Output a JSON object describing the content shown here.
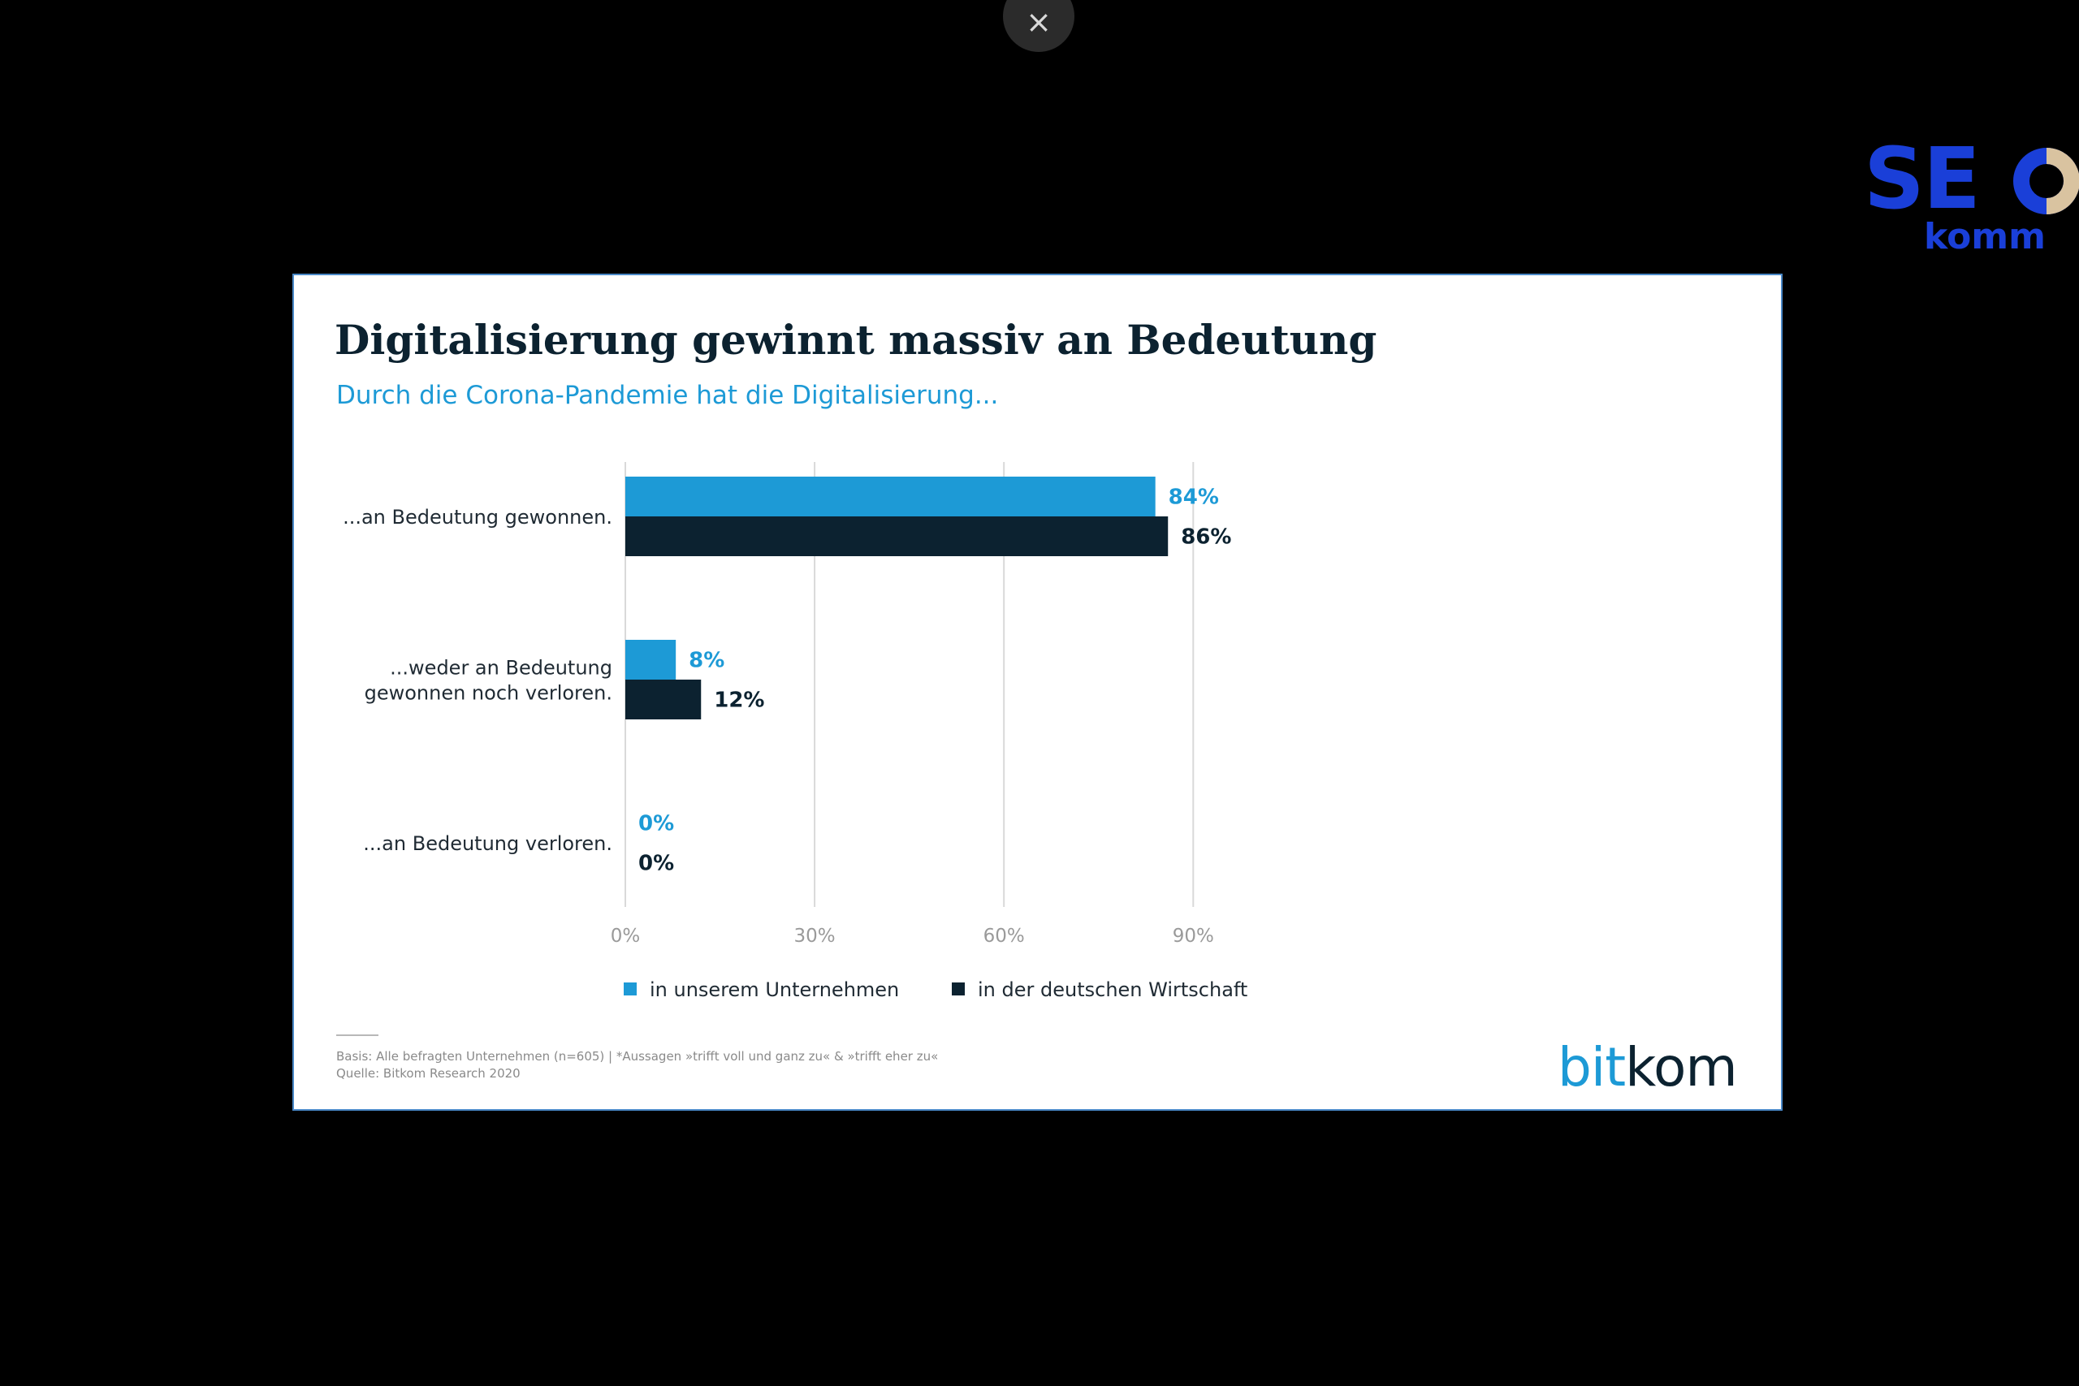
{
  "viewer": {
    "close_symbol": "×",
    "close_icon": "close-icon"
  },
  "overlay_logo": {
    "text": "SEOkomm",
    "colors": {
      "primary": "#1a3fd8",
      "accent": "#d9c3a0"
    }
  },
  "colors": {
    "company": "#1d9ad6",
    "economy": "#0c2230",
    "grid": "#d9d9d9",
    "axis_text": "#9a9a9a",
    "category_text": "#1f2a33"
  },
  "chart_data": {
    "type": "bar",
    "orientation": "horizontal",
    "title": "Digitalisierung gewinnt massiv an Bedeutung",
    "subtitle": "Durch die Corona-Pandemie hat die Digitalisierung...",
    "categories": [
      "...an Bedeutung gewonnen.",
      "...weder an Bedeutung gewonnen noch verloren.",
      "...an Bedeutung verloren."
    ],
    "category_lines": [
      [
        "...an Bedeutung gewonnen."
      ],
      [
        "...weder an Bedeutung",
        "gewonnen noch verloren."
      ],
      [
        "...an Bedeutung verloren."
      ]
    ],
    "series": [
      {
        "name": "in unserem Unternehmen",
        "values": [
          84,
          8,
          0
        ],
        "labels": [
          "84%",
          "8%",
          "0%"
        ],
        "color": "#1d9ad6"
      },
      {
        "name": "in der deutschen Wirtschaft",
        "values": [
          86,
          12,
          0
        ],
        "labels": [
          "86%",
          "12%",
          "0%"
        ],
        "color": "#0c2230"
      }
    ],
    "x_ticks": [
      0,
      30,
      60,
      90
    ],
    "x_tick_labels": [
      "0%",
      "30%",
      "60%",
      "90%"
    ],
    "xlim": [
      0,
      90
    ],
    "unit": "%",
    "grid": true,
    "legend_position": "bottom"
  },
  "footnote": {
    "basis": "Basis: Alle befragten Unternehmen (n=605) | *Aussagen »trifft voll und ganz zu« & »trifft eher zu«",
    "source": "Quelle: Bitkom Research 2020"
  },
  "brand_logo": {
    "part1": "bit",
    "part2": "kom"
  }
}
